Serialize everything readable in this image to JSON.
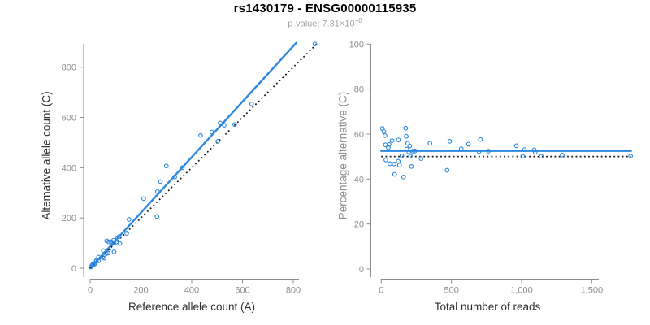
{
  "header": {
    "title": "rs1430179 - ENSG00000115935",
    "pvalue_prefix": "p-value: 7.31×10",
    "pvalue_exponent": "−8"
  },
  "colors": {
    "accent_blue": "#2b87e0",
    "axis_gray": "#8c8c8c",
    "tick_label_gray": "#8c8c8c",
    "dotted_black": "#161616",
    "title_black": "#000000",
    "subtitle_gray": "#a3a3a3"
  },
  "chart_data": [
    {
      "type": "scatter",
      "title": "",
      "xlabel": "Reference allele count (A)",
      "ylabel": "Alternative allele count (C)",
      "xlim": [
        0,
        893
      ],
      "ylim": [
        0,
        896
      ],
      "grid": false,
      "xticks": [
        0,
        200,
        400,
        600,
        800
      ],
      "xtick_labels": [
        "0",
        "200",
        "400",
        "600",
        "800"
      ],
      "yticks": [
        0,
        200,
        400,
        600,
        800
      ],
      "ytick_labels": [
        "0",
        "200",
        "400",
        "600",
        "800"
      ],
      "points": [
        [
          3,
          5
        ],
        [
          7,
          11
        ],
        [
          11,
          16
        ],
        [
          13,
          16
        ],
        [
          17,
          16
        ],
        [
          23,
          27
        ],
        [
          25,
          31
        ],
        [
          33,
          29
        ],
        [
          33,
          44
        ],
        [
          49,
          43
        ],
        [
          55,
          40
        ],
        [
          52,
          70
        ],
        [
          63,
          58
        ],
        [
          70,
          60
        ],
        [
          73,
          74
        ],
        [
          94,
          65
        ],
        [
          65,
          109
        ],
        [
          73,
          105
        ],
        [
          85,
          97
        ],
        [
          83,
          105
        ],
        [
          94,
          102
        ],
        [
          92,
          111
        ],
        [
          103,
          104
        ],
        [
          117,
          98
        ],
        [
          107,
          118
        ],
        [
          114,
          126
        ],
        [
          144,
          139
        ],
        [
          153,
          194
        ],
        [
          263,
          206
        ],
        [
          211,
          277
        ],
        [
          265,
          305
        ],
        [
          277,
          345
        ],
        [
          333,
          363
        ],
        [
          300,
          407
        ],
        [
          363,
          400
        ],
        [
          435,
          528
        ],
        [
          503,
          505
        ],
        [
          479,
          542
        ],
        [
          512,
          578
        ],
        [
          528,
          569
        ],
        [
          569,
          572
        ],
        [
          636,
          654
        ],
        [
          885,
          892
        ]
      ],
      "lines": [
        {
          "name": "fit-line",
          "x1": 0,
          "y1": 0,
          "x2": 812,
          "y2": 897,
          "color": "accent_blue",
          "style": "solid"
        },
        {
          "name": "identity-line",
          "x1": 0,
          "y1": 0,
          "x2": 893,
          "y2": 893,
          "color": "dotted_black",
          "style": "dotted"
        }
      ]
    },
    {
      "type": "scatter",
      "title": "",
      "xlabel": "Total number of reads",
      "ylabel": "Percentage alternative (C)",
      "xlim": [
        0,
        1780
      ],
      "ylim": [
        0,
        100
      ],
      "grid": false,
      "xticks": [
        0,
        500,
        1000,
        1500
      ],
      "xtick_labels": [
        "0",
        "500",
        "1,000",
        "1,500"
      ],
      "yticks": [
        0,
        20,
        40,
        60,
        80,
        100
      ],
      "ytick_labels": [
        "0",
        "20",
        "40",
        "60",
        "80",
        "100"
      ],
      "points": [
        [
          8,
          62.5
        ],
        [
          18,
          61.1
        ],
        [
          27,
          59.3
        ],
        [
          29,
          55.2
        ],
        [
          33,
          48.5
        ],
        [
          50,
          54.0
        ],
        [
          56,
          55.4
        ],
        [
          62,
          46.8
        ],
        [
          77,
          57.1
        ],
        [
          92,
          46.7
        ],
        [
          95,
          42.1
        ],
        [
          122,
          57.4
        ],
        [
          121,
          47.9
        ],
        [
          130,
          46.2
        ],
        [
          147,
          50.3
        ],
        [
          159,
          40.9
        ],
        [
          174,
          62.6
        ],
        [
          178,
          59.0
        ],
        [
          182,
          53.3
        ],
        [
          188,
          55.9
        ],
        [
          196,
          52.0
        ],
        [
          203,
          54.7
        ],
        [
          207,
          50.2
        ],
        [
          215,
          45.6
        ],
        [
          225,
          52.4
        ],
        [
          240,
          52.5
        ],
        [
          283,
          49.1
        ],
        [
          347,
          55.9
        ],
        [
          469,
          43.9
        ],
        [
          488,
          56.8
        ],
        [
          570,
          53.5
        ],
        [
          622,
          55.5
        ],
        [
          696,
          52.2
        ],
        [
          707,
          57.6
        ],
        [
          763,
          52.4
        ],
        [
          963,
          54.8
        ],
        [
          1008,
          50.1
        ],
        [
          1021,
          53.1
        ],
        [
          1090,
          53.0
        ],
        [
          1097,
          51.9
        ],
        [
          1141,
          50.1
        ],
        [
          1290,
          50.7
        ],
        [
          1777,
          50.2
        ]
      ],
      "lines": [
        {
          "name": "mean-line",
          "x1": 0,
          "y1": 52.5,
          "x2": 1780,
          "y2": 52.5,
          "color": "accent_blue",
          "style": "solid"
        },
        {
          "name": "reference-line",
          "x1": 0,
          "y1": 50,
          "x2": 1780,
          "y2": 50,
          "color": "dotted_black",
          "style": "dotted"
        }
      ]
    }
  ]
}
